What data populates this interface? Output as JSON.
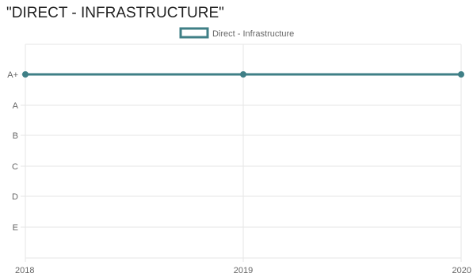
{
  "page": {
    "title": "\"DIRECT - INFRASTRUCTURE\""
  },
  "chart_data": {
    "type": "line",
    "title": "\"DIRECT - INFRASTRUCTURE\"",
    "x": [
      "2018",
      "2019",
      "2020"
    ],
    "y_categories": [
      "A+",
      "A",
      "B",
      "C",
      "D",
      "E"
    ],
    "series": [
      {
        "name": "Direct - Infrastructure",
        "values": [
          "A+",
          "A+",
          "A+"
        ],
        "color": "#3f7f86"
      }
    ],
    "xlabel": "",
    "ylabel": "",
    "grid": true,
    "legend": "top-center"
  }
}
